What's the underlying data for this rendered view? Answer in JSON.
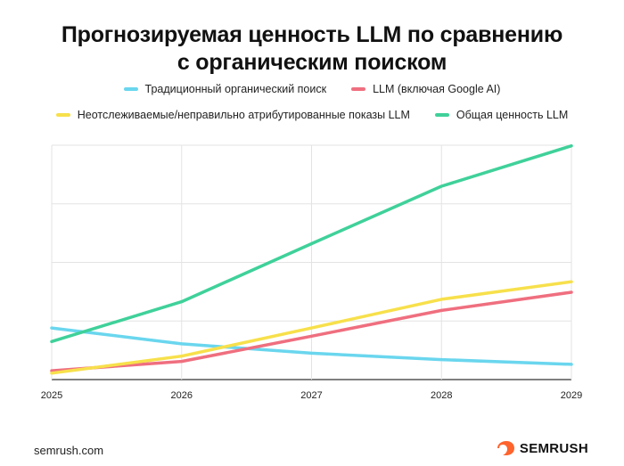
{
  "title_line1": "Прогнозируемая ценность LLM по сравнению",
  "title_line2": "с органическим поиском",
  "footer": {
    "url": "semrush.com",
    "brand": "SEMRUSH"
  },
  "chart_data": {
    "type": "line",
    "title": "Прогнозируемая ценность LLM по сравнению с органическим поиском",
    "x": [
      "2025",
      "2026",
      "2027",
      "2028",
      "2029"
    ],
    "xlabel": "",
    "ylabel": "",
    "ylim": [
      0,
      4
    ],
    "y_ticks_labeled": false,
    "grid": true,
    "legend_position": "top",
    "series": [
      {
        "name": "Традиционный органический поиск",
        "color": "#6ad6ee",
        "values": [
          0.88,
          0.61,
          0.45,
          0.34,
          0.26
        ]
      },
      {
        "name": "LLM (включая Google AI)",
        "color": "#ef6f7f",
        "values": [
          0.15,
          0.31,
          0.74,
          1.18,
          1.49
        ]
      },
      {
        "name": "Неотслеживаемые/неправильно атрибутированные показы LLM",
        "color": "#f7e04b",
        "values": [
          0.11,
          0.4,
          0.88,
          1.37,
          1.67
        ]
      },
      {
        "name": "Общая ценность LLM",
        "color": "#3fd19a",
        "values": [
          0.65,
          1.33,
          2.32,
          3.3,
          3.99
        ]
      }
    ]
  }
}
